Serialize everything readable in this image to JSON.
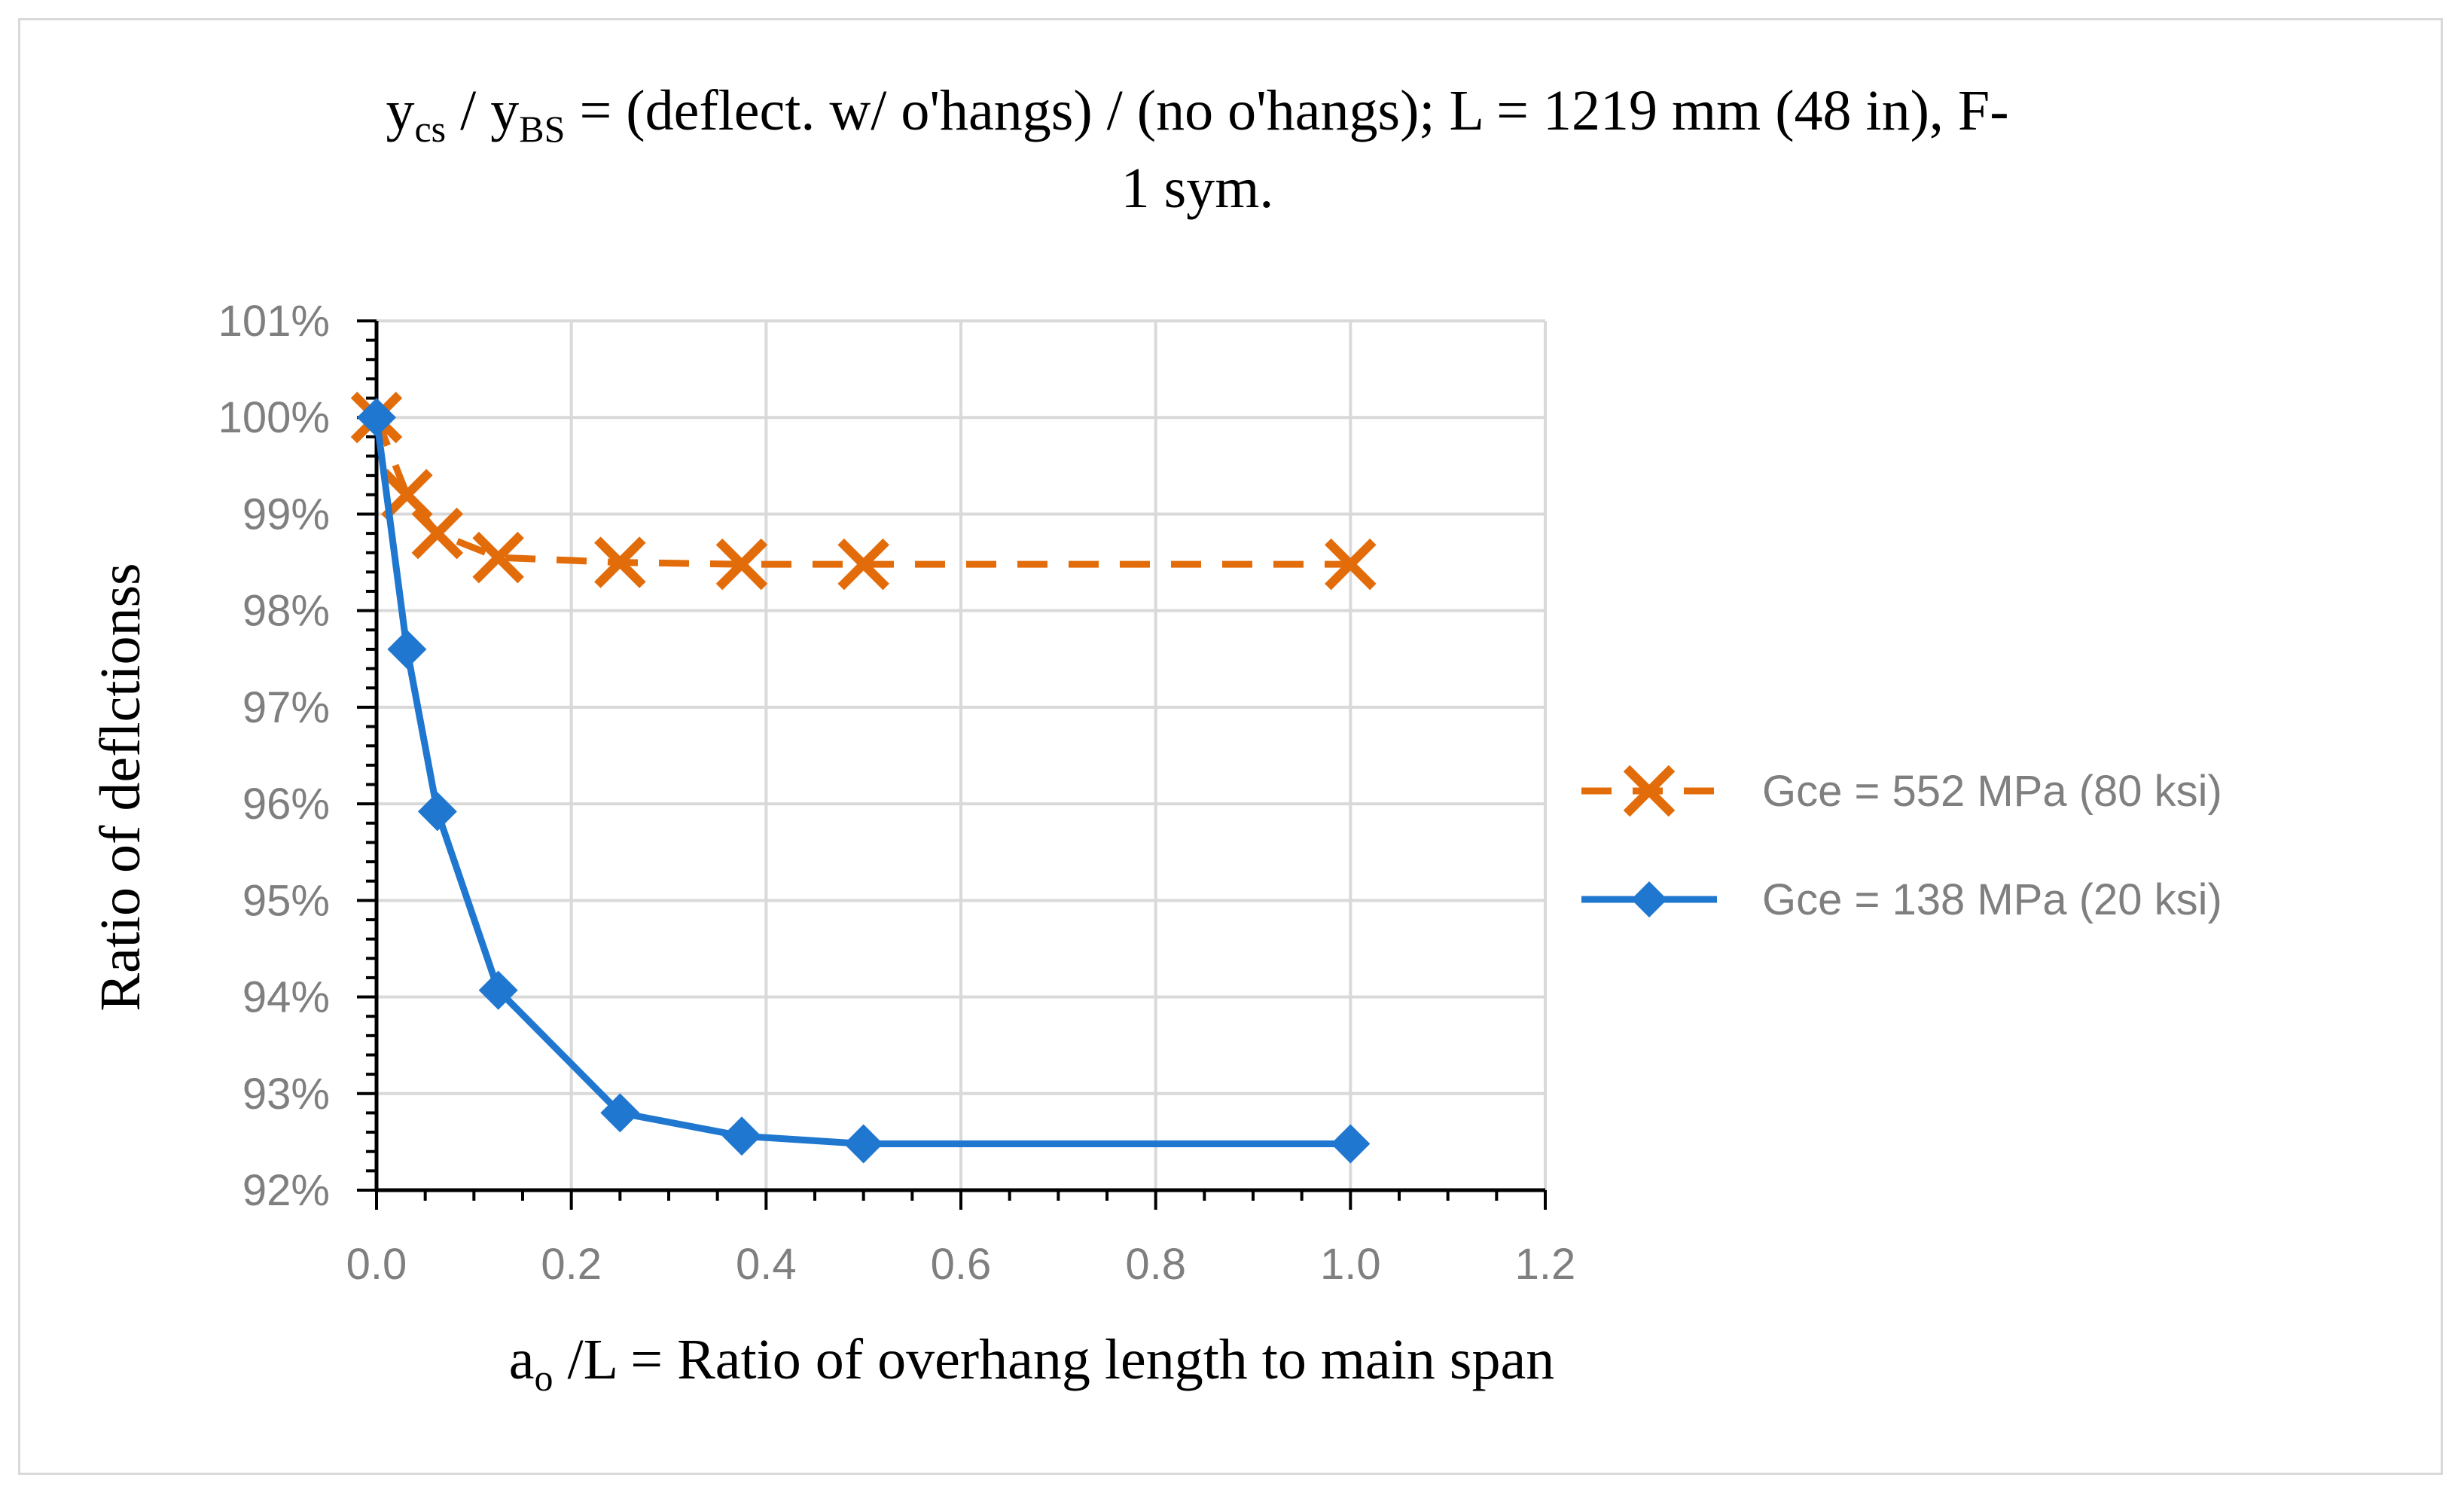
{
  "chart_data": {
    "type": "line",
    "title": {
      "y1": "y",
      "y1_sub": "cs",
      "sep": " / ",
      "y2": "y",
      "y2_sub": "BS",
      "rest_line1": " = (deflect. w/ o'hangs) / (no o'hangs); L = 1219 mm (48 in), F-",
      "line2": "1 sym."
    },
    "xlabel": {
      "a": "a",
      "a_sub": "o",
      "rest": " /L = Ratio of overhang length to main span"
    },
    "ylabel": "Ratio of deflctionss",
    "xlim": [
      0,
      1.2
    ],
    "ylim": [
      92,
      101
    ],
    "x_ticks": [
      "0.0",
      "0.2",
      "0.4",
      "0.6",
      "0.8",
      "1.0",
      "1.2"
    ],
    "y_ticks": [
      "92%",
      "93%",
      "94%",
      "95%",
      "96%",
      "97%",
      "98%",
      "99%",
      "100%",
      "101%"
    ],
    "grid": true,
    "legend_position": "right",
    "series": [
      {
        "name": "Gce = 552 MPa (80 ksi)",
        "color": "#e36c0a",
        "line_style": "dashed",
        "marker": "x",
        "x": [
          0,
          0.03125,
          0.0625,
          0.125,
          0.25,
          0.375,
          0.5,
          1.0
        ],
        "y": [
          100.0,
          99.2,
          98.8,
          98.55,
          98.5,
          98.48,
          98.48,
          98.48
        ]
      },
      {
        "name": "Gce = 138 MPa (20 ksi)",
        "color": "#1f77d0",
        "line_style": "solid",
        "marker": "diamond",
        "x": [
          0,
          0.03125,
          0.0625,
          0.125,
          0.25,
          0.375,
          0.5,
          1.0
        ],
        "y": [
          100.0,
          97.6,
          95.92,
          94.07,
          92.8,
          92.56,
          92.48,
          92.48
        ]
      }
    ]
  }
}
